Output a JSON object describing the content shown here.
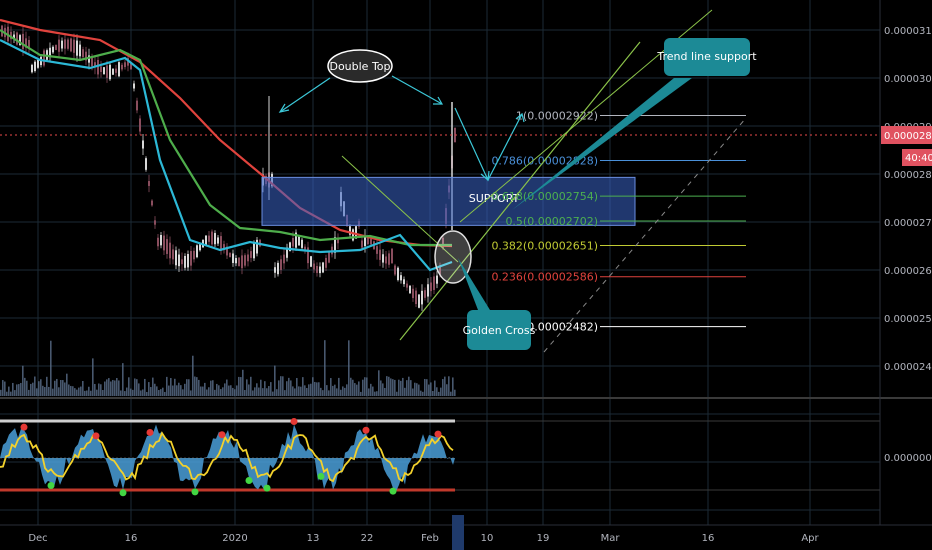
{
  "colors": {
    "background": "#000000",
    "grid": "#1c2a36",
    "price_line": "#e84a4a",
    "current_badge": "#e05260",
    "support_box": "#3a64c8",
    "callout": "#1c8a96",
    "ma_red": "#e0433d",
    "ma_green": "#4ead4b",
    "ma_cyan": "#2cb8d6"
  },
  "annotations": {
    "double_top": "Double Top",
    "trend_line_support": "Trend line support",
    "support": "SUPPORT",
    "golden_cross": "Golden Cross"
  },
  "price_axis": {
    "ticks": [
      "0.00003100",
      "0.00003000",
      "0.00002900",
      "0.00002800",
      "0.00002700",
      "0.00002600",
      "0.00002500",
      "0.00002400"
    ],
    "current_price": "0.00002877",
    "countdown": "40:40"
  },
  "oscillator_axis": {
    "tick": "0.00000000"
  },
  "time_axis": {
    "ticks": [
      "Dec",
      "16",
      "2020",
      "13",
      "22",
      "Feb",
      "10",
      "19",
      "Mar",
      "16",
      "Apr"
    ]
  },
  "chart_data": {
    "type": "line",
    "ylim": [
      2.4e-05,
      3.13e-05
    ],
    "fib_levels": [
      {
        "label": "1(0.00002922)",
        "value": 2.922e-05,
        "color": "#b2b5be"
      },
      {
        "label": "0.786(0.00002828)",
        "value": 2.828e-05,
        "color": "#4a90d9"
      },
      {
        "label": "0.618(0.00002754)",
        "value": 2.754e-05,
        "color": "#4caf50"
      },
      {
        "label": "0.5(0.00002702)",
        "value": 2.702e-05,
        "color": "#4caf50"
      },
      {
        "label": "0.382(0.00002651)",
        "value": 2.651e-05,
        "color": "#c0ca33"
      },
      {
        "label": "0.236(0.00002586)",
        "value": 2.586e-05,
        "color": "#e0433d"
      },
      {
        "label": "0(0.00002482)",
        "value": 2.482e-05,
        "color": "#ffffff"
      }
    ],
    "support_zone": [
      2.693e-05,
      2.793e-05
    ],
    "current_price": 2.877e-05
  }
}
